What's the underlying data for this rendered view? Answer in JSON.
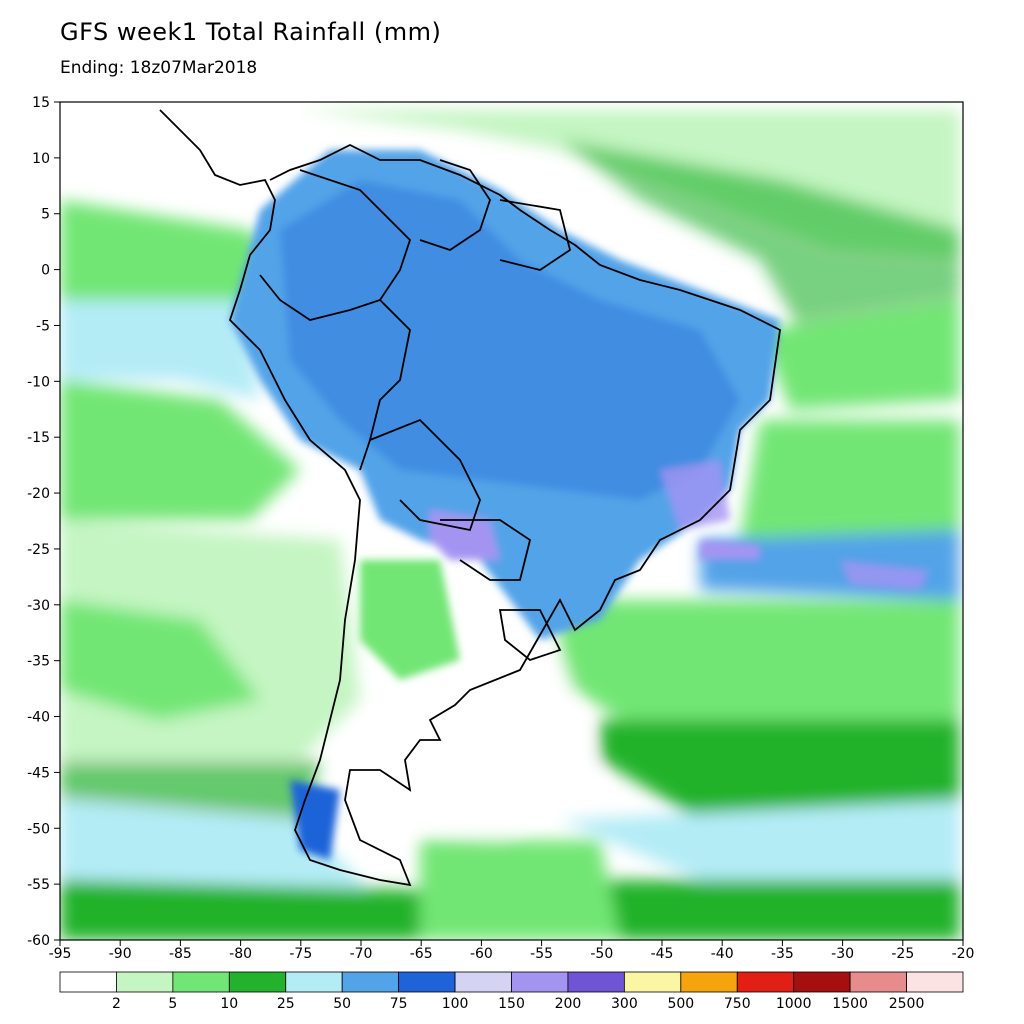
{
  "title": "GFS week1 Total Rainfall (mm)",
  "subtitle": "Ending: 18z07Mar2018",
  "map": {
    "lon_range": [
      -95,
      -20
    ],
    "lat_range": [
      -60,
      15
    ],
    "lon_ticks": [
      "-95",
      "-90",
      "-85",
      "-80",
      "-75",
      "-70",
      "-65",
      "-60",
      "-55",
      "-50",
      "-45",
      "-40",
      "-35",
      "-30",
      "-25",
      "-20"
    ],
    "lat_ticks": [
      "15",
      "10",
      "5",
      "0",
      "-5",
      "-10",
      "-15",
      "-20",
      "-25",
      "-30",
      "-35",
      "-40",
      "-45",
      "-50",
      "-55",
      "-60"
    ]
  },
  "colorbar": {
    "colors": [
      "#ffffff",
      "#c4f5c2",
      "#72e675",
      "#22b22c",
      "#b4ecf6",
      "#52a3e8",
      "#1f63d8",
      "#d4d3f4",
      "#a494f2",
      "#6f55d4",
      "#fbf6a4",
      "#f6a40e",
      "#e21f14",
      "#a60f0f",
      "#e68c8c",
      "#fce3e3"
    ],
    "labels": [
      "2",
      "5",
      "10",
      "25",
      "50",
      "75",
      "100",
      "150",
      "200",
      "300",
      "500",
      "750",
      "1000",
      "1500",
      "2500"
    ]
  }
}
